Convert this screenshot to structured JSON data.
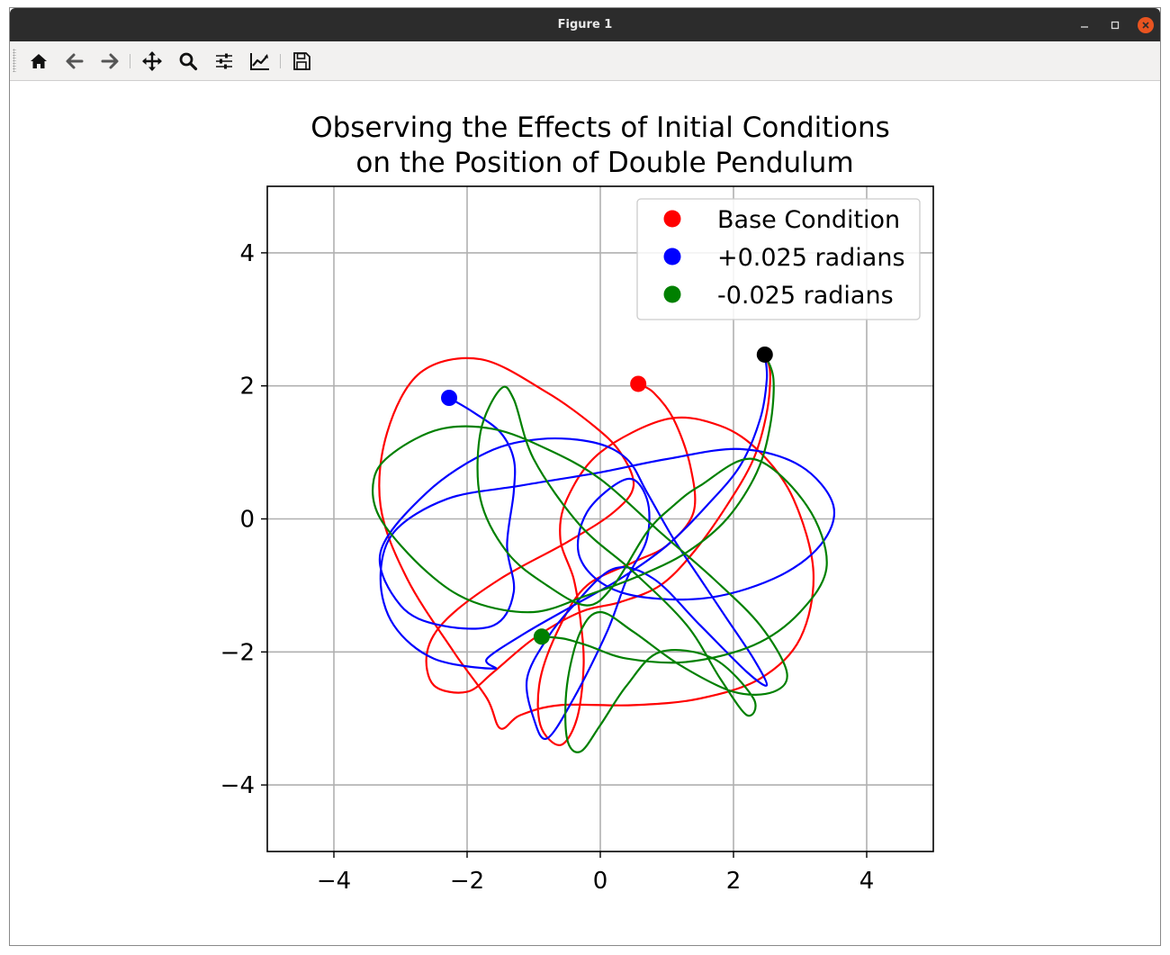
{
  "window": {
    "title": "Figure 1"
  },
  "toolbar": {
    "buttons": [
      {
        "name": "home",
        "icon": "home-icon"
      },
      {
        "name": "back",
        "icon": "arrow-left-icon"
      },
      {
        "name": "forward",
        "icon": "arrow-right-icon"
      },
      {
        "name": "pan",
        "icon": "move-icon"
      },
      {
        "name": "zoom",
        "icon": "zoom-icon"
      },
      {
        "name": "configure-subplots",
        "icon": "sliders-icon"
      },
      {
        "name": "edit-axis",
        "icon": "line-chart-icon"
      },
      {
        "name": "save",
        "icon": "save-icon"
      }
    ]
  },
  "chart_data": {
    "type": "line",
    "title_line1": "Observing the Effects of Initial Conditions",
    "title_line2": "on the Position of Double Pendulum",
    "xlabel": "",
    "ylabel": "",
    "xlim": [
      -5,
      5
    ],
    "ylim": [
      -5,
      5
    ],
    "grid": true,
    "legend_placement": "top-right",
    "x_ticks": [
      -4,
      -2,
      0,
      2,
      4
    ],
    "y_ticks": [
      -4,
      -2,
      0,
      2,
      4
    ],
    "x_tick_labels": [
      "−4",
      "−2",
      "0",
      "2",
      "4"
    ],
    "y_tick_labels": [
      "−4",
      "−2",
      "0",
      "2",
      "4"
    ],
    "start_point": {
      "x": 2.47,
      "y": 2.47,
      "color": "#000000"
    },
    "series": [
      {
        "name": "Base Condition",
        "color": "#ff0000",
        "end_point": {
          "x": 0.57,
          "y": 2.03
        },
        "path": [
          [
            2.47,
            2.47
          ],
          [
            2.55,
            2.2
          ],
          [
            2.5,
            1.6
          ],
          [
            2.3,
            0.9
          ],
          [
            1.9,
            0.2
          ],
          [
            1.4,
            -0.5
          ],
          [
            0.9,
            -1.0
          ],
          [
            0.3,
            -1.25
          ],
          [
            -0.3,
            -1.4
          ],
          [
            -1.0,
            -1.8
          ],
          [
            -1.6,
            -2.3
          ],
          [
            -2.0,
            -2.6
          ],
          [
            -2.5,
            -2.5
          ],
          [
            -2.6,
            -2.0
          ],
          [
            -2.3,
            -1.5
          ],
          [
            -1.5,
            -0.9
          ],
          [
            -0.5,
            -0.35
          ],
          [
            0.2,
            0.1
          ],
          [
            0.5,
            0.5
          ],
          [
            0.3,
            1.0
          ],
          [
            -0.1,
            1.4
          ],
          [
            -0.8,
            1.9
          ],
          [
            -1.8,
            2.4
          ],
          [
            -2.7,
            2.2
          ],
          [
            -3.2,
            1.3
          ],
          [
            -3.3,
            0.2
          ],
          [
            -2.9,
            -0.9
          ],
          [
            -2.2,
            -2.0
          ],
          [
            -1.7,
            -2.7
          ],
          [
            -1.5,
            -3.15
          ],
          [
            -1.2,
            -2.95
          ],
          [
            -0.6,
            -2.8
          ],
          [
            0.5,
            -2.8
          ],
          [
            1.5,
            -2.7
          ],
          [
            2.4,
            -2.4
          ],
          [
            3.0,
            -1.8
          ],
          [
            3.2,
            -0.8
          ],
          [
            2.9,
            0.3
          ],
          [
            2.4,
            1.0
          ],
          [
            1.8,
            1.4
          ],
          [
            1.0,
            1.5
          ],
          [
            0.0,
            1.0
          ],
          [
            -0.5,
            0.3
          ],
          [
            -0.6,
            -0.3
          ],
          [
            -0.4,
            -0.9
          ],
          [
            -0.3,
            -1.5
          ],
          [
            -0.25,
            -2.2
          ],
          [
            -0.35,
            -3.0
          ],
          [
            -0.6,
            -3.4
          ],
          [
            -0.9,
            -3.1
          ],
          [
            -0.9,
            -2.4
          ],
          [
            -0.6,
            -1.6
          ],
          [
            -0.2,
            -1.0
          ],
          [
            0.5,
            -0.65
          ],
          [
            1.0,
            -0.4
          ],
          [
            1.4,
            0.1
          ],
          [
            1.35,
            0.8
          ],
          [
            1.1,
            1.5
          ],
          [
            0.8,
            1.9
          ],
          [
            0.57,
            2.03
          ]
        ]
      },
      {
        "name": "+0.025 radians",
        "color": "#0000ff",
        "end_point": {
          "x": -2.27,
          "y": 1.82
        },
        "path": [
          [
            2.47,
            2.47
          ],
          [
            2.5,
            2.1
          ],
          [
            2.4,
            1.5
          ],
          [
            2.1,
            0.8
          ],
          [
            1.6,
            0.2
          ],
          [
            1.0,
            -0.4
          ],
          [
            0.3,
            -0.9
          ],
          [
            -0.4,
            -1.3
          ],
          [
            -1.1,
            -1.7
          ],
          [
            -1.7,
            -2.1
          ],
          [
            -1.6,
            -2.25
          ],
          [
            -2.5,
            -2.1
          ],
          [
            -3.1,
            -1.6
          ],
          [
            -3.3,
            -0.9
          ],
          [
            -3.1,
            -0.2
          ],
          [
            -2.3,
            0.3
          ],
          [
            -1.2,
            0.5
          ],
          [
            0.0,
            0.7
          ],
          [
            1.0,
            0.9
          ],
          [
            2.1,
            1.05
          ],
          [
            3.0,
            0.8
          ],
          [
            3.5,
            0.2
          ],
          [
            3.3,
            -0.4
          ],
          [
            2.6,
            -0.9
          ],
          [
            1.5,
            -1.2
          ],
          [
            0.3,
            -1.1
          ],
          [
            -0.3,
            -0.6
          ],
          [
            -0.2,
            0.1
          ],
          [
            0.4,
            0.6
          ],
          [
            0.7,
            0.3
          ],
          [
            0.7,
            -0.3
          ],
          [
            0.4,
            -0.9
          ],
          [
            0.1,
            -1.7
          ],
          [
            -0.4,
            -2.7
          ],
          [
            -0.8,
            -3.3
          ],
          [
            -1.0,
            -3.0
          ],
          [
            -1.1,
            -2.4
          ],
          [
            -0.8,
            -1.8
          ],
          [
            -0.4,
            -1.3
          ],
          [
            0.2,
            -0.75
          ],
          [
            0.8,
            -0.9
          ],
          [
            1.5,
            -1.6
          ],
          [
            2.2,
            -2.3
          ],
          [
            2.5,
            -2.5
          ],
          [
            2.3,
            -2.1
          ],
          [
            1.9,
            -1.5
          ],
          [
            1.5,
            -0.9
          ],
          [
            1.1,
            -0.3
          ],
          [
            0.7,
            0.4
          ],
          [
            0.4,
            0.9
          ],
          [
            -0.1,
            1.15
          ],
          [
            -0.9,
            1.2
          ],
          [
            -1.7,
            1.0
          ],
          [
            -2.6,
            0.4
          ],
          [
            -3.3,
            -0.5
          ],
          [
            -3.0,
            -1.3
          ],
          [
            -2.4,
            -1.6
          ],
          [
            -1.6,
            -1.6
          ],
          [
            -1.3,
            -1.1
          ],
          [
            -1.4,
            -0.4
          ],
          [
            -1.3,
            0.4
          ],
          [
            -1.3,
            0.9
          ],
          [
            -1.5,
            1.3
          ],
          [
            -1.9,
            1.6
          ],
          [
            -2.27,
            1.82
          ]
        ]
      },
      {
        "name": "-0.025 radians",
        "color": "#008000",
        "end_point": {
          "x": -0.88,
          "y": -1.77
        },
        "path": [
          [
            2.47,
            2.47
          ],
          [
            2.6,
            2.1
          ],
          [
            2.55,
            1.4
          ],
          [
            2.35,
            0.7
          ],
          [
            1.9,
            0.0
          ],
          [
            1.3,
            -0.5
          ],
          [
            0.6,
            -0.85
          ],
          [
            -0.2,
            -1.15
          ],
          [
            -1.0,
            -1.4
          ],
          [
            -1.9,
            -1.25
          ],
          [
            -2.6,
            -0.8
          ],
          [
            -3.3,
            0.0
          ],
          [
            -3.4,
            0.6
          ],
          [
            -3.1,
            1.0
          ],
          [
            -2.4,
            1.35
          ],
          [
            -1.6,
            1.35
          ],
          [
            -0.8,
            1.05
          ],
          [
            0.0,
            0.6
          ],
          [
            0.9,
            -0.2
          ],
          [
            1.7,
            -0.9
          ],
          [
            2.4,
            -1.6
          ],
          [
            2.8,
            -2.3
          ],
          [
            2.6,
            -2.6
          ],
          [
            2.0,
            -2.6
          ],
          [
            1.2,
            -2.2
          ],
          [
            0.5,
            -1.7
          ],
          [
            0.0,
            -1.4
          ],
          [
            -0.3,
            -1.7
          ],
          [
            -0.5,
            -2.5
          ],
          [
            -0.5,
            -3.3
          ],
          [
            -0.3,
            -3.5
          ],
          [
            0.0,
            -3.1
          ],
          [
            0.4,
            -2.5
          ],
          [
            0.9,
            -2.0
          ],
          [
            1.7,
            -2.1
          ],
          [
            2.3,
            -2.7
          ],
          [
            2.2,
            -2.95
          ],
          [
            1.8,
            -2.4
          ],
          [
            1.3,
            -1.6
          ],
          [
            0.5,
            -0.8
          ],
          [
            -0.3,
            -0.1
          ],
          [
            -1.0,
            0.9
          ],
          [
            -1.3,
            1.8
          ],
          [
            -1.5,
            1.95
          ],
          [
            -1.8,
            1.3
          ],
          [
            -1.8,
            0.3
          ],
          [
            -1.4,
            -0.5
          ],
          [
            -0.8,
            -1.0
          ],
          [
            -0.2,
            -1.3
          ],
          [
            0.2,
            -1.0
          ],
          [
            0.7,
            -0.2
          ],
          [
            1.1,
            0.2
          ],
          [
            1.5,
            0.5
          ],
          [
            2.3,
            0.9
          ],
          [
            3.1,
            0.2
          ],
          [
            3.4,
            -0.7
          ],
          [
            3.0,
            -1.4
          ],
          [
            2.3,
            -1.9
          ],
          [
            1.3,
            -2.15
          ],
          [
            0.4,
            -2.1
          ],
          [
            -0.2,
            -1.9
          ],
          [
            -0.55,
            -1.8
          ],
          [
            -0.88,
            -1.77
          ]
        ]
      }
    ]
  }
}
